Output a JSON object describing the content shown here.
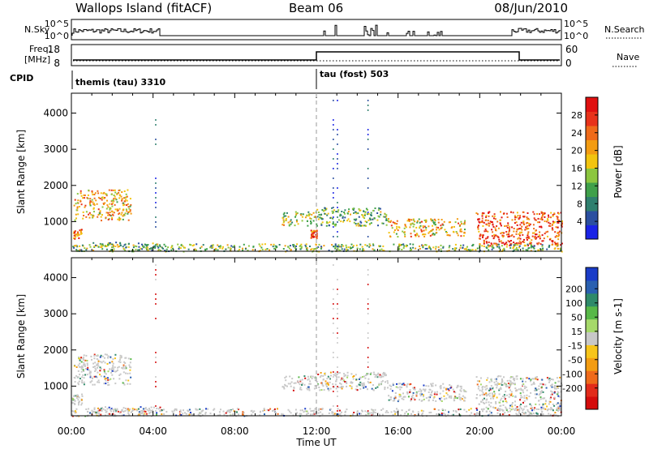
{
  "header": {
    "station": "Wallops Island (fitACF)",
    "beam": "Beam 06",
    "date": "08/Jun/2010"
  },
  "top_panels": {
    "nsky_label": "N.Sky",
    "nsky_ticks": [
      "10^5",
      "10^0"
    ],
    "nsearch_label": "N.Search",
    "nsearch_ticks": [
      "10^5",
      "10^0"
    ],
    "freq_label_1": "Freq.",
    "freq_label_2": "[MHz]",
    "freq_ticks": [
      "18",
      "8"
    ],
    "nave_label": "Nave",
    "nave_ticks": [
      "60",
      "0"
    ],
    "cpid_label": "CPID",
    "cpid_modes": [
      {
        "label": "themis (tau) 3310",
        "start_hour": 0
      },
      {
        "label": "tau (fost) 503",
        "start_hour": 12
      }
    ]
  },
  "chart_data": [
    {
      "type": "heatmap",
      "name": "power-panel",
      "x": {
        "label": "Time UT",
        "range_hours": [
          0,
          24
        ],
        "tick_labels": [
          "00:00",
          "04:00",
          "08:00",
          "12:00",
          "16:00",
          "20:00",
          "00:00"
        ]
      },
      "y": {
        "label": "Slant Range [km]",
        "range": [
          180,
          4550
        ],
        "ticks": [
          1000,
          2000,
          3000,
          4000
        ]
      },
      "colorbar": {
        "label": "Power [dB]",
        "ticks": [
          "4",
          "8",
          "12",
          "16",
          "20",
          "24",
          "28"
        ],
        "colors": [
          "#1a23e6",
          "#2b4fa0",
          "#2f7f6e",
          "#3fa04a",
          "#8cc63f",
          "#f2c40f",
          "#f39c12",
          "#ef6a1a",
          "#e8321a",
          "#e01010"
        ]
      },
      "regions": [
        {
          "t0": 0.1,
          "t1": 2.9,
          "r0": 1050,
          "r1": 1900,
          "level": 0.62
        },
        {
          "t0": 0.0,
          "t1": 0.5,
          "r0": 500,
          "r1": 800,
          "level": 0.75
        },
        {
          "t0": 1.0,
          "t1": 4.5,
          "r0": 300,
          "r1": 450,
          "level": 0.35
        },
        {
          "t0": 10.3,
          "t1": 12.0,
          "r0": 900,
          "r1": 1300,
          "level": 0.5
        },
        {
          "t0": 11.7,
          "t1": 12.0,
          "r0": 550,
          "r1": 800,
          "level": 0.8
        },
        {
          "t0": 12.0,
          "t1": 15.5,
          "r0": 900,
          "r1": 1400,
          "level": 0.38
        },
        {
          "t0": 15.5,
          "t1": 19.3,
          "r0": 600,
          "r1": 1100,
          "level": 0.6
        },
        {
          "t0": 19.8,
          "t1": 24.0,
          "r0": 350,
          "r1": 1300,
          "level": 0.8
        },
        {
          "t0": 0.0,
          "t1": 24.0,
          "r0": 190,
          "r1": 400,
          "level": 0.4
        }
      ]
    },
    {
      "type": "heatmap",
      "name": "velocity-panel",
      "x": {
        "label": "Time UT",
        "range_hours": [
          0,
          24
        ],
        "tick_labels": [
          "00:00",
          "04:00",
          "08:00",
          "12:00",
          "16:00",
          "20:00",
          "00:00"
        ]
      },
      "y": {
        "label": "Slant Range [km]",
        "range": [
          180,
          4550
        ],
        "ticks": [
          1000,
          2000,
          3000,
          4000
        ]
      },
      "colorbar": {
        "label": "Velocity [m s-1]",
        "ticks": [
          "200",
          "100",
          "50",
          "15",
          "-15",
          "-50",
          "-100",
          "-200"
        ],
        "colors": [
          "#1a3cc8",
          "#2a60b0",
          "#2f8a6a",
          "#57b847",
          "#a6d96a",
          "#c8c8c8",
          "#f7c51a",
          "#f39c12",
          "#ef6a1a",
          "#e22b1a",
          "#d40c0c"
        ]
      },
      "regions": [
        {
          "t0": 0.1,
          "t1": 2.9,
          "r0": 1050,
          "r1": 1900,
          "level": 0.5
        },
        {
          "t0": 0.0,
          "t1": 0.5,
          "r0": 500,
          "r1": 800,
          "level": 0.5
        },
        {
          "t0": 1.0,
          "t1": 4.5,
          "r0": 300,
          "r1": 450,
          "level": 0.7
        },
        {
          "t0": 10.3,
          "t1": 12.0,
          "r0": 900,
          "r1": 1300,
          "level": 0.5
        },
        {
          "t0": 12.0,
          "t1": 15.5,
          "r0": 900,
          "r1": 1400,
          "level": 0.5
        },
        {
          "t0": 15.5,
          "t1": 19.3,
          "r0": 600,
          "r1": 1100,
          "level": 0.5
        },
        {
          "t0": 19.8,
          "t1": 24.0,
          "r0": 350,
          "r1": 1300,
          "level": 0.5
        },
        {
          "t0": 0.0,
          "t1": 24.0,
          "r0": 190,
          "r1": 400,
          "level": 0.45
        }
      ]
    }
  ]
}
